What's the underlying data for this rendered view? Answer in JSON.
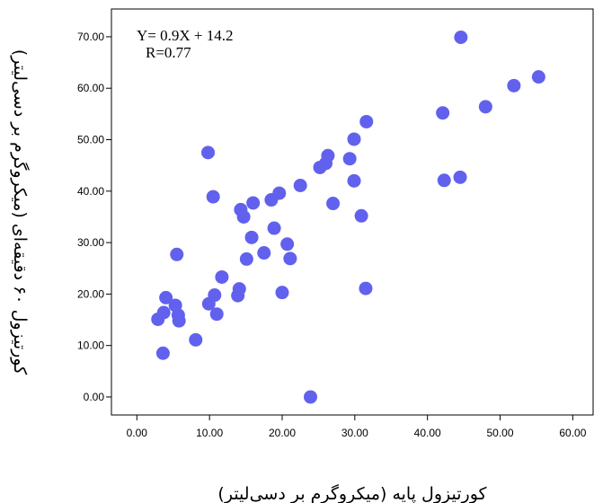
{
  "chart_data": {
    "type": "scatter",
    "xlabel": "کورتیزول پایه (میکروگرم بر دسی‌لیتر)",
    "ylabel": "کورتیزول ۶۰ دقیقه‌ای (میکروگرم بر دسی‌لیتر)",
    "annotations": [
      "Y= 0.9X + 14.2",
      "R=0.77"
    ],
    "xlim": [
      -3.5,
      62.8
    ],
    "ylim": [
      -3.5,
      75.4
    ],
    "x_ticks": [
      0,
      10,
      20,
      30,
      40,
      50,
      60
    ],
    "y_ticks": [
      0,
      10,
      20,
      30,
      40,
      50,
      60,
      70
    ],
    "x_tick_labels": [
      "0.00",
      "10.00",
      "20.00",
      "30.00",
      "40.00",
      "50.00",
      "60.00"
    ],
    "y_tick_labels": [
      "0.00",
      "10.00",
      "20.00",
      "30.00",
      "40.00",
      "50.00",
      "60.00",
      "70.00"
    ],
    "grid": false,
    "marker_color": "#6161ee",
    "points": [
      {
        "x": 2.9,
        "y": 15.1
      },
      {
        "x": 3.6,
        "y": 8.5
      },
      {
        "x": 3.7,
        "y": 16.4
      },
      {
        "x": 4.0,
        "y": 19.3
      },
      {
        "x": 5.3,
        "y": 17.8
      },
      {
        "x": 5.5,
        "y": 27.7
      },
      {
        "x": 5.7,
        "y": 15.9
      },
      {
        "x": 5.8,
        "y": 14.8
      },
      {
        "x": 8.1,
        "y": 11.1
      },
      {
        "x": 9.8,
        "y": 47.5
      },
      {
        "x": 9.9,
        "y": 18.1
      },
      {
        "x": 10.5,
        "y": 38.9
      },
      {
        "x": 10.7,
        "y": 19.8
      },
      {
        "x": 11.0,
        "y": 16.1
      },
      {
        "x": 11.7,
        "y": 23.3
      },
      {
        "x": 13.9,
        "y": 19.7
      },
      {
        "x": 14.1,
        "y": 21.0
      },
      {
        "x": 14.3,
        "y": 36.4
      },
      {
        "x": 14.7,
        "y": 35.0
      },
      {
        "x": 15.1,
        "y": 26.8
      },
      {
        "x": 15.8,
        "y": 31.0
      },
      {
        "x": 16.0,
        "y": 37.7
      },
      {
        "x": 17.5,
        "y": 28.0
      },
      {
        "x": 18.5,
        "y": 38.3
      },
      {
        "x": 18.9,
        "y": 32.8
      },
      {
        "x": 19.6,
        "y": 39.6
      },
      {
        "x": 20.0,
        "y": 20.3
      },
      {
        "x": 20.7,
        "y": 29.7
      },
      {
        "x": 21.1,
        "y": 26.9
      },
      {
        "x": 22.5,
        "y": 41.1
      },
      {
        "x": 23.9,
        "y": 0.0
      },
      {
        "x": 25.2,
        "y": 44.6
      },
      {
        "x": 26.0,
        "y": 45.4
      },
      {
        "x": 26.3,
        "y": 46.9
      },
      {
        "x": 27.0,
        "y": 37.6
      },
      {
        "x": 29.3,
        "y": 46.3
      },
      {
        "x": 29.9,
        "y": 50.1
      },
      {
        "x": 29.9,
        "y": 42.0
      },
      {
        "x": 30.9,
        "y": 35.2
      },
      {
        "x": 31.5,
        "y": 21.1
      },
      {
        "x": 31.6,
        "y": 53.5
      },
      {
        "x": 42.1,
        "y": 55.2
      },
      {
        "x": 42.3,
        "y": 42.1
      },
      {
        "x": 44.5,
        "y": 42.7
      },
      {
        "x": 44.6,
        "y": 69.9
      },
      {
        "x": 48.0,
        "y": 56.4
      },
      {
        "x": 51.9,
        "y": 60.5
      },
      {
        "x": 55.3,
        "y": 62.2
      }
    ]
  }
}
